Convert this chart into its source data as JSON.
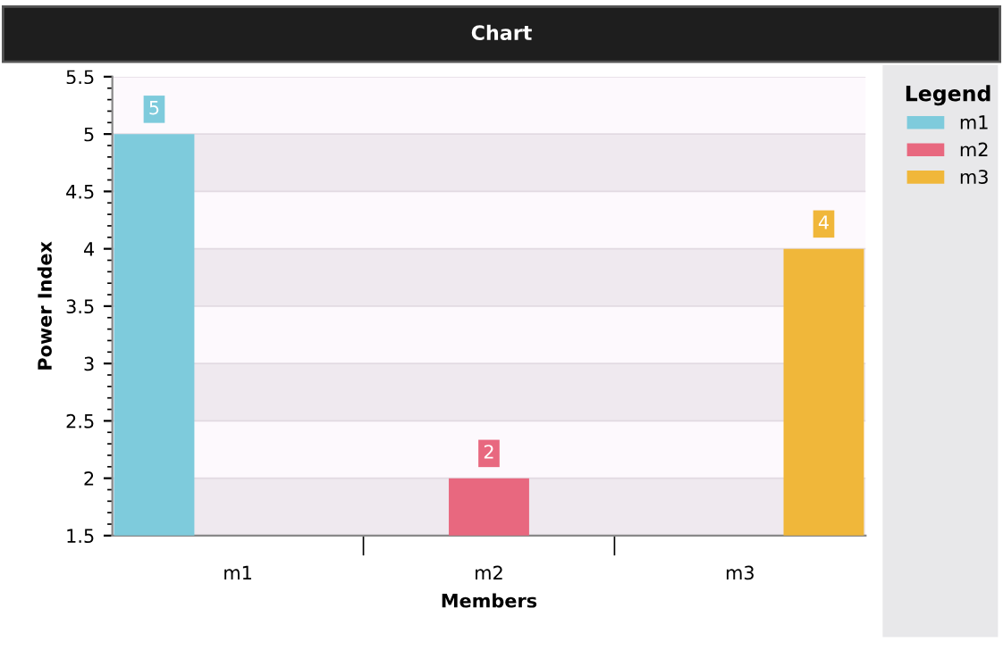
{
  "chart_data": {
    "type": "bar",
    "title": "Chart",
    "xlabel": "Members",
    "ylabel": "Power Index",
    "legend_title": "Legend",
    "categories": [
      "m1",
      "m2",
      "m3"
    ],
    "series": [
      {
        "name": "m1",
        "color": "#7ecbdc",
        "values": [
          5,
          null,
          null
        ]
      },
      {
        "name": "m2",
        "color": "#e8687f",
        "values": [
          null,
          2,
          null
        ]
      },
      {
        "name": "m3",
        "color": "#f0b73a",
        "values": [
          null,
          null,
          4
        ]
      }
    ],
    "ylim": [
      1.5,
      5.5
    ],
    "yticks": [
      1.5,
      2,
      2.5,
      3,
      3.5,
      4,
      4.5,
      5,
      5.5
    ],
    "grid": "y",
    "legend": "right",
    "data_labels": true
  }
}
